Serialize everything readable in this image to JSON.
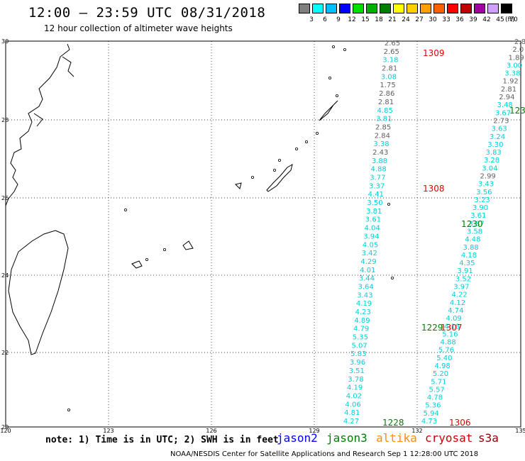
{
  "title": "12:00 – 23:59 UTC 08/31/2018",
  "subtitle": "12 hour collection of altimeter wave heights",
  "legend": {
    "unit": "(ft)",
    "bins": [
      {
        "label": "3",
        "color": "#7f7f7f"
      },
      {
        "label": "6",
        "color": "#00ffff"
      },
      {
        "label": "9",
        "color": "#00bfff"
      },
      {
        "label": "12",
        "color": "#0000ff"
      },
      {
        "label": "15",
        "color": "#00e000"
      },
      {
        "label": "18",
        "color": "#00b000"
      },
      {
        "label": "21",
        "color": "#008000"
      },
      {
        "label": "24",
        "color": "#ffff00"
      },
      {
        "label": "27",
        "color": "#ffd000"
      },
      {
        "label": "30",
        "color": "#ffa000"
      },
      {
        "label": "33",
        "color": "#ff6000"
      },
      {
        "label": "36",
        "color": "#ff0000"
      },
      {
        "label": "39",
        "color": "#c00000"
      },
      {
        "label": "42",
        "color": "#a000a0"
      },
      {
        "label": "45",
        "color": "#d0a0ff"
      },
      {
        "label": "70",
        "color": "#000000"
      }
    ]
  },
  "axes": {
    "lon_ticks": [
      "120",
      "123",
      "126",
      "129",
      "132",
      "135"
    ],
    "lat_ticks": [
      "30",
      "28",
      "26",
      "24",
      "22",
      "20"
    ]
  },
  "timestamps": [
    {
      "text": "1309",
      "color": "#e00000"
    },
    {
      "text": "1308",
      "color": "#e00000"
    },
    {
      "text": "1307",
      "color": "#e00000"
    },
    {
      "text": "1306",
      "color": "#e00000"
    },
    {
      "text": "123",
      "color": "#008000"
    },
    {
      "text": "1230",
      "color": "#008000"
    },
    {
      "text": "1229",
      "color": "#008000"
    },
    {
      "text": "1228",
      "color": "#008000"
    }
  ],
  "tracks": {
    "track_a": [
      "2.65",
      "2.65",
      "3.18",
      "2.81",
      "3.08",
      "1.75",
      "2.86",
      "2.81",
      "4.85",
      "3.81",
      "2.85",
      "2.84",
      "3.38",
      "2.43",
      "3.88",
      "4.88",
      "3.77",
      "3.37",
      "4.41",
      "3.50",
      "3.81",
      "3.61",
      "4.04",
      "3.94",
      "4.05",
      "3.42",
      "4.29",
      "4.01",
      "3.44",
      "3.64",
      "3.43",
      "4.19",
      "4.23",
      "4.89",
      "4.79",
      "5.35",
      "5.07",
      "5.83",
      "3.96",
      "3.51",
      "3.78",
      "4.19",
      "4.02",
      "4.06",
      "4.81",
      "4.27"
    ],
    "track_b": [
      "2.8",
      "2.0",
      "1.89",
      "3.00",
      "3.38",
      "1.92",
      "2.81",
      "2.94",
      "3.48",
      "3.67",
      "2.73",
      "3.63",
      "3.24",
      "3.30",
      "3.83",
      "3.28",
      "3.04",
      "2.99",
      "3.43",
      "3.56",
      "3.23",
      "3.90",
      "3.61",
      "3.87",
      "3.58",
      "4.48",
      "3.88",
      "4.18",
      "4.35",
      "3.91",
      "3.52",
      "3.97",
      "4.22",
      "4.12",
      "4.74",
      "4.09",
      "4.18",
      "5.16",
      "4.88",
      "5.76",
      "5.40",
      "4.98",
      "5.20",
      "5.71",
      "5.57",
      "4.78",
      "5.36",
      "5.94",
      "4.73"
    ]
  },
  "note": "note: 1) Time is in UTC; 2) SWH is in feet",
  "satellites": [
    {
      "name": "jason2",
      "color": "#0000ff"
    },
    {
      "name": "jason3",
      "color": "#008000"
    },
    {
      "name": "altika",
      "color": "#ff8c00"
    },
    {
      "name": "cryosat",
      "color": "#cc0000"
    },
    {
      "name": "s3a",
      "color": "#8b0000"
    }
  ],
  "credit": "NOAA/NESDIS Center for Satellite Applications and Research   Sep  1 12:28:00 UTC 2018"
}
